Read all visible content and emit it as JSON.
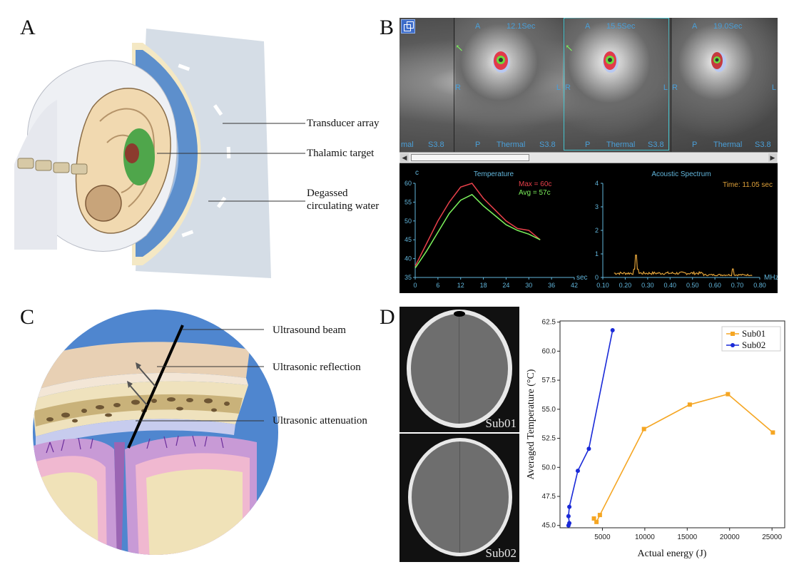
{
  "panels": {
    "a": {
      "letter": "A",
      "labels": {
        "transducer": "Transducer array",
        "thalamic": "Thalamic target",
        "water_line1": "Degassed",
        "water_line2": "circulating water"
      }
    },
    "b": {
      "letter": "B",
      "frames": [
        {
          "time": "12.1Sec",
          "top": "A",
          "left": "R",
          "right": "L",
          "bottom": "P",
          "mode": "Thermal",
          "slice": "S3.8",
          "left_edge": "mal"
        },
        {
          "time": "15.5Sec",
          "top": "A",
          "left": "R",
          "right": "L",
          "bottom": "P",
          "mode": "Thermal",
          "slice": "S3.8"
        },
        {
          "time": "19.0Sec",
          "top": "A",
          "left": "R",
          "right": "L",
          "bottom": "P",
          "mode": "Thermal",
          "slice": "S3.8"
        }
      ],
      "temperature_plot": {
        "title": "Temperature",
        "unit": "c",
        "x_unit": "sec",
        "max_label": "Max = 60c",
        "avg_label": "Avg = 57c",
        "x_ticks": [
          "0",
          "6",
          "12",
          "18",
          "24",
          "30",
          "36",
          "42"
        ],
        "y_ticks": [
          "35",
          "40",
          "45",
          "50",
          "55",
          "60"
        ],
        "max_series": [
          [
            0,
            38
          ],
          [
            3,
            44
          ],
          [
            6,
            50
          ],
          [
            9,
            55
          ],
          [
            12,
            59
          ],
          [
            15,
            60
          ],
          [
            18,
            56
          ],
          [
            21,
            53
          ],
          [
            24,
            50
          ],
          [
            27,
            48
          ],
          [
            30,
            47.5
          ],
          [
            33,
            45
          ]
        ],
        "avg_series": [
          [
            0,
            37.5
          ],
          [
            3,
            42
          ],
          [
            6,
            47
          ],
          [
            9,
            52
          ],
          [
            12,
            55.5
          ],
          [
            15,
            57
          ],
          [
            18,
            54
          ],
          [
            21,
            51.5
          ],
          [
            24,
            49
          ],
          [
            27,
            47.5
          ],
          [
            30,
            46.5
          ],
          [
            33,
            45
          ]
        ],
        "colors": {
          "max": "#e8404a",
          "avg": "#7cf25c",
          "axis": "#62b6dc"
        }
      },
      "spectrum_plot": {
        "title": "Acoustic Spectrum",
        "time_label": "Time: 11.05 sec",
        "x_unit": "MHz",
        "x_ticks": [
          "0.10",
          "0.20",
          "0.30",
          "0.40",
          "0.50",
          "0.60",
          "0.70",
          "0.80"
        ],
        "y_ticks": [
          "0",
          "1",
          "2",
          "3",
          "4"
        ],
        "colors": {
          "trace": "#e0a23a"
        }
      }
    },
    "c": {
      "letter": "C",
      "labels": {
        "beam": "Ultrasound beam",
        "reflection": "Ultrasonic reflection",
        "attenuation": "Ultrasonic attenuation"
      }
    },
    "d": {
      "letter": "D",
      "ct_labels": [
        "Sub01",
        "Sub02"
      ],
      "chart_data": {
        "type": "line",
        "xlabel": "Actual energy (J)",
        "ylabel": "Averaged Temperature (°C)",
        "xlim": [
          0,
          26500
        ],
        "ylim": [
          44.8,
          62.6
        ],
        "x_ticks": [
          5000,
          10000,
          15000,
          20000,
          25000
        ],
        "y_ticks": [
          45.0,
          47.5,
          50.0,
          52.5,
          55.0,
          57.5,
          60.0,
          62.5
        ],
        "legend_position": "top-right",
        "series": [
          {
            "name": "Sub01",
            "color": "#f5a623",
            "marker": "square",
            "points": [
              [
                4000,
                45.6
              ],
              [
                4300,
                45.3
              ],
              [
                4700,
                45.9
              ],
              [
                9900,
                53.3
              ],
              [
                15300,
                55.4
              ],
              [
                19800,
                56.3
              ],
              [
                25100,
                53.0
              ]
            ]
          },
          {
            "name": "Sub02",
            "color": "#1a2ad8",
            "marker": "circle",
            "points": [
              [
                1000,
                45.0
              ],
              [
                1100,
                45.2
              ],
              [
                1000,
                45.8
              ],
              [
                1100,
                46.6
              ],
              [
                2100,
                49.7
              ],
              [
                3400,
                51.6
              ],
              [
                6200,
                61.8
              ]
            ]
          }
        ]
      }
    }
  }
}
